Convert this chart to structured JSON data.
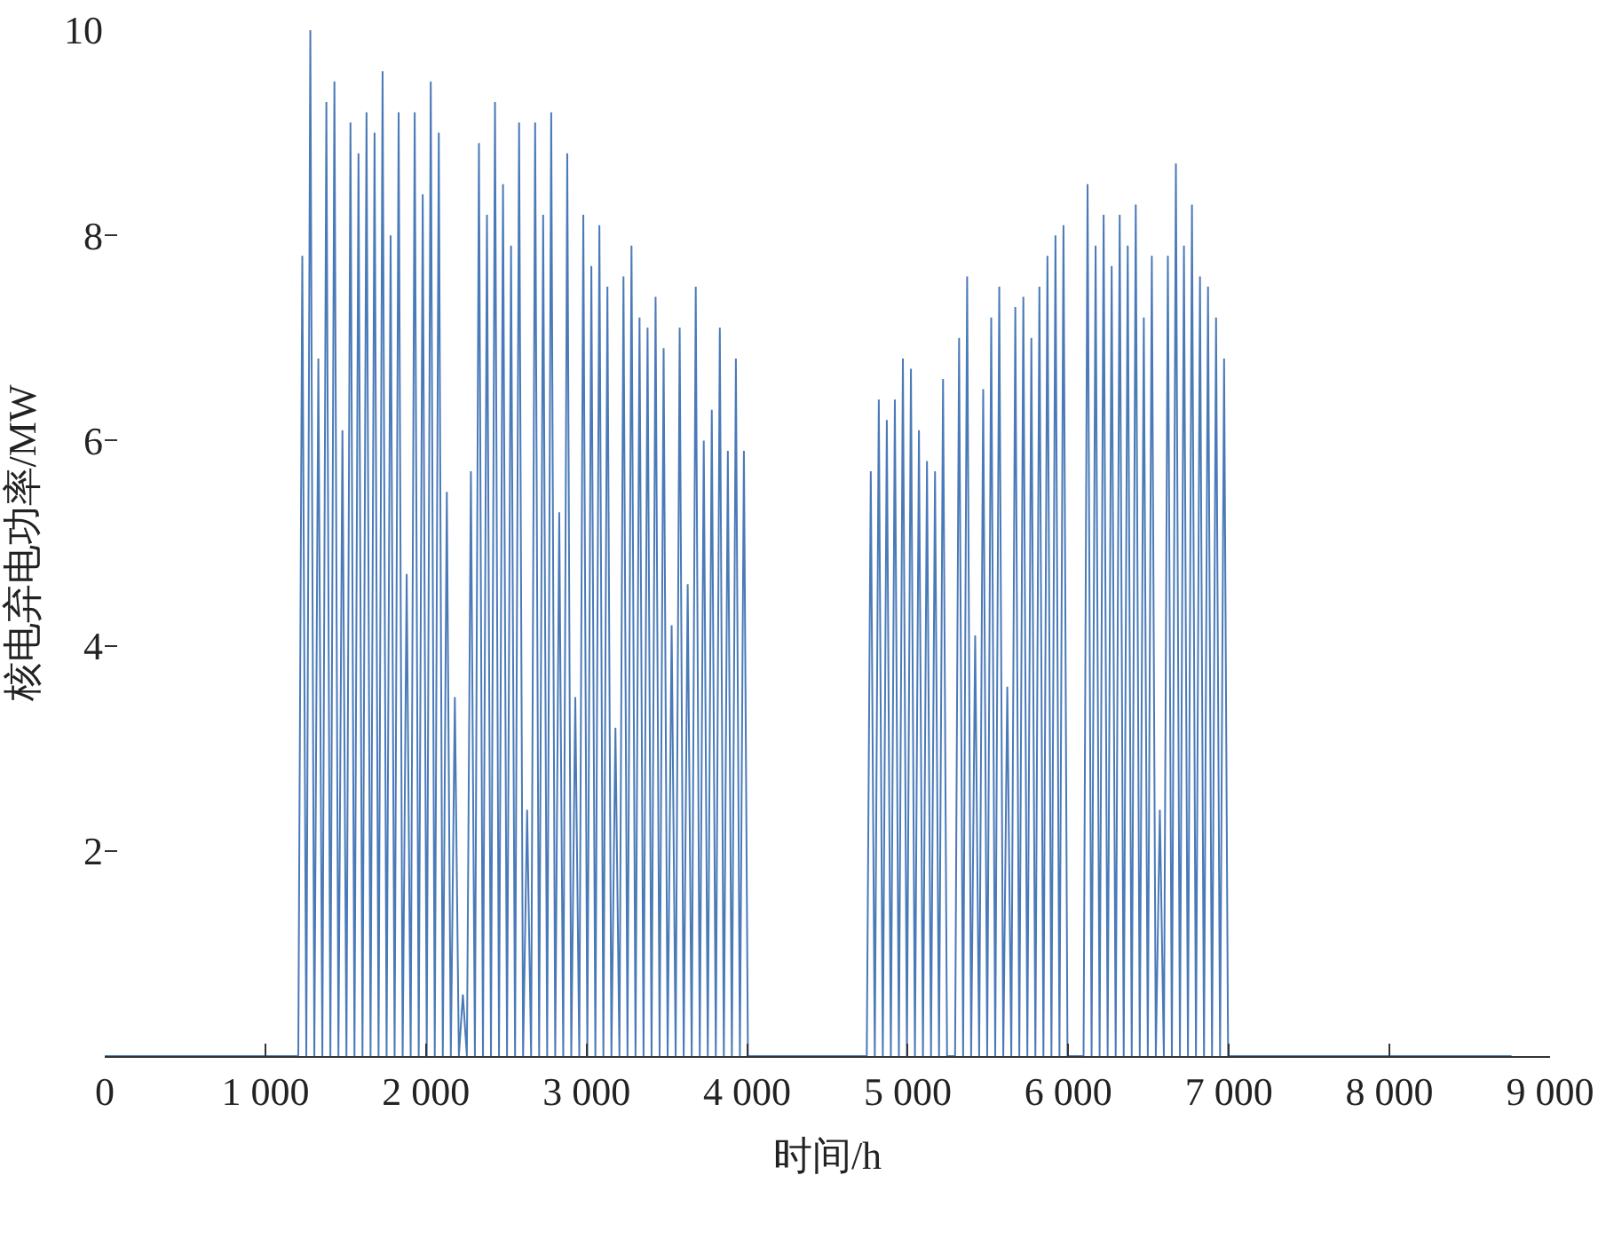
{
  "chart_data": {
    "type": "line",
    "xlabel": "时间/h",
    "ylabel": "核电弃电功率/MW",
    "color": "#4a7ab8",
    "grid": false,
    "marker": "none",
    "line_style": "solid",
    "xlim": [
      0,
      9000
    ],
    "ylim": [
      0,
      10
    ],
    "xticks": [
      0,
      {
        "value": 1000,
        "label": "1 000"
      },
      {
        "value": 2000,
        "label": "2 000"
      },
      {
        "value": 3000,
        "label": "3 000"
      },
      {
        "value": 4000,
        "label": "4 000"
      },
      {
        "value": 5000,
        "label": "5 000"
      },
      {
        "value": 6000,
        "label": "6 000"
      },
      {
        "value": 7000,
        "label": "7 000"
      },
      {
        "value": 8000,
        "label": "8 000"
      },
      {
        "value": 9000,
        "label": "9 000"
      }
    ],
    "yticks": [
      2,
      4,
      6,
      8,
      10
    ],
    "x": [
      0,
      1205,
      1230,
      1255,
      1280,
      1305,
      1330,
      1355,
      1380,
      1405,
      1430,
      1455,
      1480,
      1505,
      1530,
      1555,
      1580,
      1605,
      1630,
      1655,
      1680,
      1705,
      1730,
      1755,
      1780,
      1805,
      1830,
      1855,
      1880,
      1905,
      1930,
      1955,
      1980,
      2005,
      2030,
      2055,
      2080,
      2105,
      2130,
      2155,
      2180,
      2205,
      2230,
      2255,
      2280,
      2305,
      2330,
      2355,
      2380,
      2405,
      2430,
      2455,
      2480,
      2505,
      2530,
      2555,
      2580,
      2605,
      2630,
      2655,
      2680,
      2705,
      2730,
      2755,
      2780,
      2805,
      2830,
      2855,
      2880,
      2905,
      2930,
      2955,
      2980,
      3005,
      3030,
      3055,
      3080,
      3105,
      3130,
      3155,
      3180,
      3205,
      3230,
      3255,
      3280,
      3305,
      3330,
      3355,
      3380,
      3405,
      3430,
      3455,
      3480,
      3505,
      3530,
      3555,
      3580,
      3605,
      3630,
      3655,
      3680,
      3705,
      3730,
      3755,
      3780,
      3805,
      3830,
      3855,
      3880,
      3905,
      3930,
      3955,
      3980,
      4005,
      4745,
      4770,
      4795,
      4820,
      4845,
      4870,
      4895,
      4920,
      4945,
      4970,
      4995,
      5020,
      5045,
      5070,
      5095,
      5120,
      5145,
      5170,
      5195,
      5220,
      5245,
      5295,
      5320,
      5345,
      5370,
      5395,
      5420,
      5445,
      5470,
      5495,
      5520,
      5545,
      5570,
      5595,
      5620,
      5645,
      5670,
      5695,
      5720,
      5745,
      5770,
      5795,
      5820,
      5845,
      5870,
      5895,
      5920,
      5945,
      5970,
      5995,
      6095,
      6120,
      6145,
      6170,
      6195,
      6220,
      6245,
      6270,
      6295,
      6320,
      6345,
      6370,
      6395,
      6420,
      6445,
      6470,
      6495,
      6520,
      6545,
      6570,
      6595,
      6620,
      6645,
      6670,
      6695,
      6720,
      6745,
      6770,
      6795,
      6820,
      6845,
      6870,
      6895,
      6920,
      6945,
      6970,
      6995,
      8760
    ],
    "values": [
      0,
      0,
      7.8,
      0,
      10,
      0,
      6.8,
      0,
      9.3,
      0,
      9.5,
      0,
      6.1,
      0,
      9.1,
      0,
      8.8,
      0,
      9.2,
      0,
      9.0,
      0,
      9.6,
      0,
      8.0,
      0,
      9.2,
      0,
      4.7,
      0,
      9.2,
      0,
      8.4,
      0,
      9.5,
      0,
      9.0,
      0,
      5.5,
      0,
      3.5,
      0,
      0.6,
      0,
      5.7,
      0,
      8.9,
      0,
      8.2,
      0,
      9.3,
      0,
      8.5,
      0,
      7.9,
      0,
      9.1,
      0,
      2.4,
      0,
      9.1,
      0,
      8.2,
      0,
      9.2,
      0,
      5.3,
      0,
      8.8,
      0,
      3.5,
      0,
      8.2,
      0,
      7.7,
      0,
      8.1,
      0,
      7.5,
      0,
      3.2,
      0,
      7.6,
      0,
      7.9,
      0,
      7.2,
      0,
      7.1,
      0,
      7.4,
      0,
      6.9,
      0,
      4.2,
      0,
      7.1,
      0,
      4.6,
      0,
      7.5,
      0,
      6.0,
      0,
      6.3,
      0,
      7.1,
      0,
      5.9,
      0,
      6.8,
      0,
      5.9,
      0,
      0,
      5.7,
      0,
      6.4,
      0,
      6.2,
      0,
      6.4,
      0,
      6.8,
      0,
      6.7,
      0,
      6.1,
      0,
      5.8,
      0,
      5.7,
      0,
      6.6,
      0,
      0,
      7.0,
      0,
      7.6,
      0,
      4.1,
      0,
      6.5,
      0,
      7.2,
      0,
      7.5,
      0,
      3.6,
      0,
      7.3,
      0,
      7.4,
      0,
      7.0,
      0,
      7.5,
      0,
      7.8,
      0,
      8.0,
      0,
      8.1,
      0,
      0,
      8.5,
      0,
      7.9,
      0,
      8.2,
      0,
      7.7,
      0,
      8.2,
      0,
      7.9,
      0,
      8.3,
      0,
      7.2,
      0,
      7.8,
      0,
      2.4,
      0,
      7.8,
      0,
      8.7,
      0,
      7.9,
      0,
      8.3,
      0,
      7.6,
      0,
      7.5,
      0,
      7.2,
      0,
      6.8,
      0,
      0
    ]
  }
}
